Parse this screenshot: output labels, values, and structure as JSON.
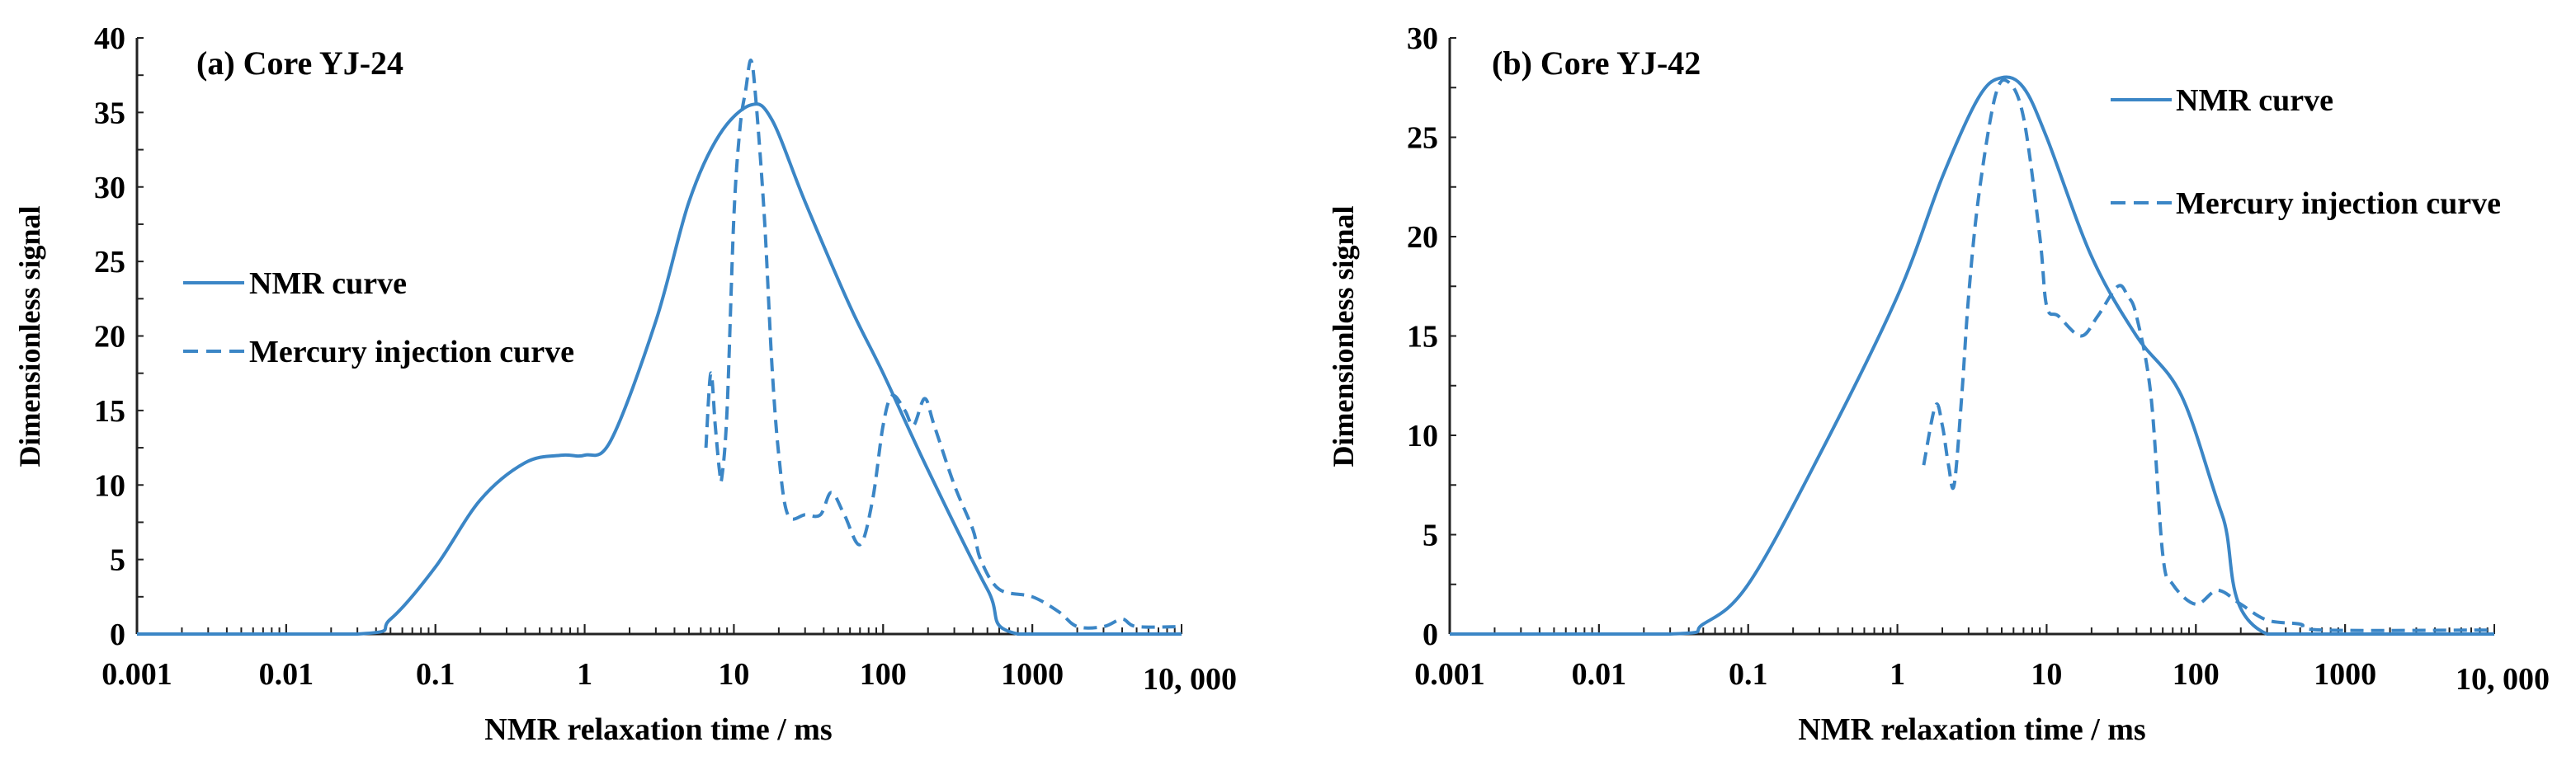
{
  "chart_data": [
    {
      "type": "line",
      "title": "(a) Core YJ-24",
      "xlabel": "NMR relaxation time / ms",
      "ylabel": "Dimensionless signal",
      "xscale": "log",
      "xlim": [
        0.001,
        10000
      ],
      "ylim": [
        0,
        40
      ],
      "xticks": [
        0.001,
        0.01,
        0.1,
        1,
        10,
        100,
        1000,
        10000
      ],
      "xtick_labels": [
        "0.001",
        "0.01",
        "0.1",
        "1",
        "10",
        "100",
        "1000",
        "10, 000"
      ],
      "yticks": [
        0,
        5,
        10,
        15,
        20,
        25,
        30,
        35,
        40
      ],
      "ytick_labels": [
        "0",
        "5",
        "10",
        "15",
        "20",
        "25",
        "30",
        "35",
        "40"
      ],
      "legend_position": "middle-left",
      "series": [
        {
          "name": "NMR curve",
          "style": "solid",
          "color": "#3b86c6",
          "x": [
            0.001,
            0.03,
            0.05,
            0.1,
            0.2,
            0.4,
            0.7,
            1,
            1.5,
            3,
            5,
            8,
            13,
            18,
            30,
            60,
            100,
            200,
            500,
            800,
            10000
          ],
          "y": [
            0,
            0,
            1,
            4.5,
            9,
            11.5,
            12,
            12,
            13,
            21,
            29,
            33.5,
            35.5,
            34.5,
            29,
            22,
            17.5,
            11,
            3,
            0,
            0
          ]
        },
        {
          "name": "Mercury injection curve",
          "style": "dashed",
          "color": "#3b86c6",
          "x": [
            6.5,
            7,
            7.5,
            8,
            8.3,
            9,
            10,
            11,
            12,
            13,
            14,
            16,
            18,
            20,
            23,
            30,
            38,
            45,
            55,
            70,
            85,
            100,
            115,
            140,
            160,
            190,
            220,
            300,
            400,
            450,
            600,
            1000,
            1500,
            2000,
            3000,
            4000,
            5000,
            10000
          ],
          "y": [
            12.5,
            17.5,
            14,
            11,
            10.5,
            15,
            28,
            34,
            36.5,
            38.5,
            36,
            28,
            18,
            12,
            8,
            8,
            8,
            9.5,
            8,
            6,
            9,
            14,
            16,
            15,
            14,
            15.8,
            14,
            10,
            7,
            5,
            3,
            2.5,
            1.5,
            0.5,
            0.5,
            1,
            0.5,
            0.5
          ]
        }
      ]
    },
    {
      "type": "line",
      "title": "(b) Core YJ-42",
      "xlabel": "NMR relaxation time / ms",
      "ylabel": "Dimensionless signal",
      "xscale": "log",
      "xlim": [
        0.001,
        10000
      ],
      "ylim": [
        0,
        30
      ],
      "xticks": [
        0.001,
        0.01,
        0.1,
        1,
        10,
        100,
        1000,
        10000
      ],
      "xtick_labels": [
        "0.001",
        "0.01",
        "0.1",
        "1",
        "10",
        "100",
        "1000",
        "10, 000"
      ],
      "yticks": [
        0,
        5,
        10,
        15,
        20,
        25,
        30
      ],
      "ytick_labels": [
        "0",
        "5",
        "10",
        "15",
        "20",
        "25",
        "30"
      ],
      "legend_position": "top-right",
      "series": [
        {
          "name": "NMR curve",
          "style": "solid",
          "color": "#3b86c6",
          "x": [
            0.001,
            0.03,
            0.05,
            0.1,
            0.3,
            1,
            2,
            3.5,
            5,
            7,
            10,
            20,
            40,
            80,
            150,
            300,
            10000
          ],
          "y": [
            0,
            0,
            0.5,
            2.5,
            9,
            17,
            23,
            27,
            28,
            27.5,
            25,
            19,
            15,
            12,
            6,
            0,
            0
          ]
        },
        {
          "name": "Mercury injection curve",
          "style": "dashed",
          "color": "#3b86c6",
          "x": [
            1.5,
            1.8,
            2,
            2.2,
            2.4,
            2.7,
            3,
            3.5,
            4.5,
            5.5,
            7,
            9,
            10,
            12,
            17,
            22,
            30,
            35,
            40,
            50,
            60,
            70,
            100,
            140,
            200,
            300,
            500,
            700,
            10000
          ],
          "y": [
            8.5,
            11.5,
            10.5,
            8.5,
            7.5,
            12,
            17,
            22,
            27,
            27.8,
            26,
            20,
            16.5,
            16,
            15,
            16,
            17.5,
            17,
            16,
            12,
            4,
            2.5,
            1.5,
            2.2,
            1.5,
            0.7,
            0.5,
            0.2,
            0.2
          ]
        }
      ]
    }
  ]
}
